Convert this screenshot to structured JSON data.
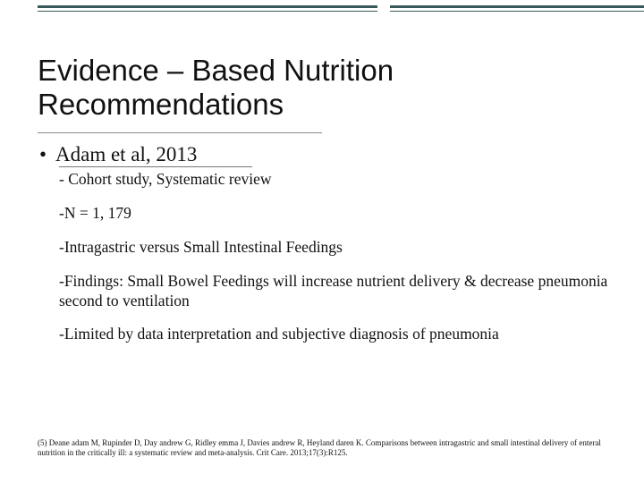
{
  "colors": {
    "rule": "#3a5a5a",
    "text": "#111111",
    "background": "#ffffff"
  },
  "title": "Evidence – Based Nutrition Recommendations",
  "study": {
    "bullet": "•",
    "author_line": "Adam et al, 2013",
    "design": "- Cohort study, Systematic review",
    "n": "-N = 1, 179",
    "comparison": "-Intragastric versus Small Intestinal Feedings",
    "findings": "-Findings: Small Bowel Feedings will increase nutrient delivery &  decrease pneumonia second to ventilation",
    "limitation": " -Limited by data interpretation and subjective diagnosis of pneumonia"
  },
  "citation": "(5) Deane adam M, Rupinder D, Day andrew G, Ridley emma J, Davies andrew R, Heyland daren K. Comparisons between intragastric and small intestinal delivery of enteral nutrition in the critically ill: a systematic review and meta-analysis. Crit Care. 2013;17(3):R125."
}
